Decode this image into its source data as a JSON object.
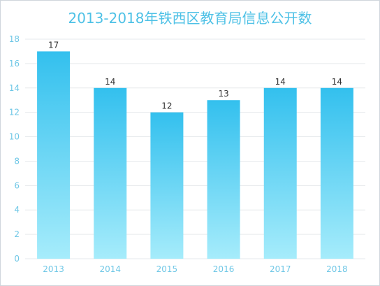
{
  "chart_data": {
    "type": "bar",
    "title": "2013-2018年铁西区教育局信息公开数",
    "categories": [
      "2013",
      "2014",
      "2015",
      "2016",
      "2017",
      "2018"
    ],
    "values": [
      17,
      14,
      12,
      13,
      14,
      14
    ],
    "xlabel": "",
    "ylabel": "",
    "ylim": [
      0,
      18
    ],
    "yticks": [
      0,
      2,
      4,
      6,
      8,
      10,
      12,
      14,
      16,
      18
    ],
    "grid": true,
    "legend": "none",
    "colors": {
      "bar_top": "#33c0ee",
      "bar_bottom": "#a6ecfb",
      "title": "#4ec1e6",
      "axis_text": "#6fc7e6",
      "grid": "#e6e9ec"
    }
  }
}
